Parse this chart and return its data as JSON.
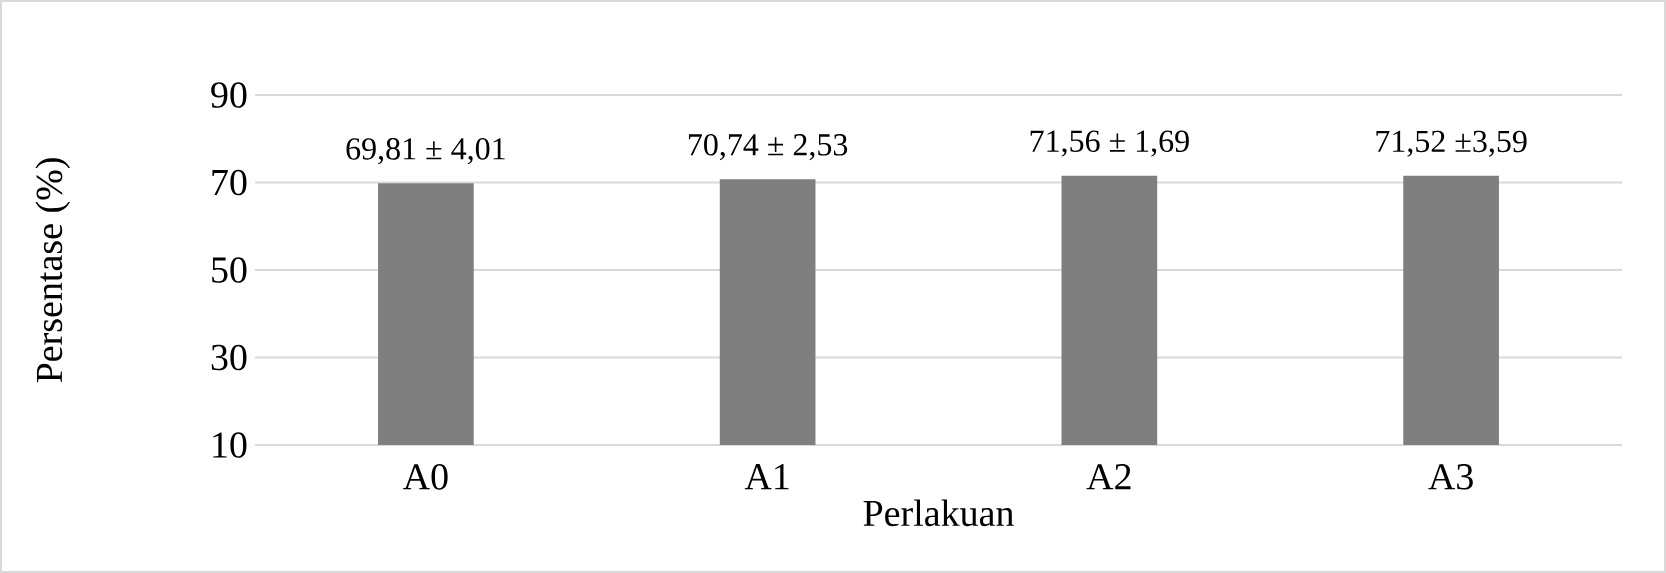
{
  "chart_data": {
    "type": "bar",
    "xlabel": "Perlakuan",
    "ylabel": "Persentase  (%)",
    "categories": [
      "A0",
      "A1",
      "A2",
      "A3"
    ],
    "values": [
      69.81,
      70.74,
      71.56,
      71.52
    ],
    "value_labels": [
      "69,81  ± 4,01",
      "70,74  ± 2,53",
      "71,56  ± 1,69",
      "71,52  ±3,59"
    ],
    "color": "#7f7f7f",
    "ylim": [
      10,
      90
    ],
    "yticks": [
      10,
      30,
      50,
      70,
      90
    ],
    "grid": "y"
  }
}
